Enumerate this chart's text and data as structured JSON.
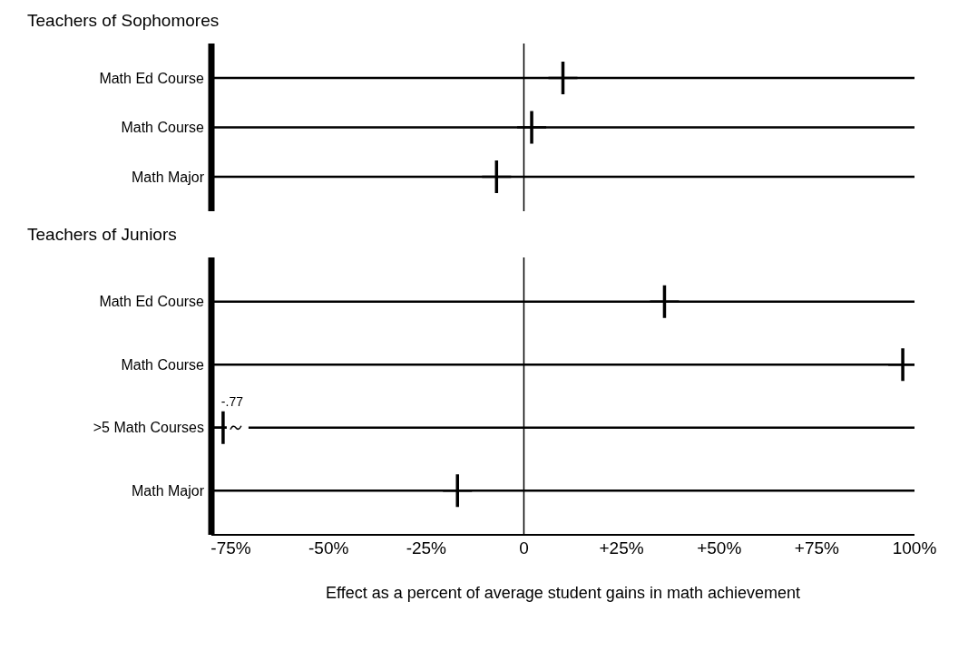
{
  "chart_data": [
    {
      "type": "scatter",
      "orientation": "horizontal",
      "title": "Teachers of Sophomores",
      "categories": [
        "Math Ed Course",
        "Math Course",
        "Math Major"
      ],
      "series": [
        {
          "color": "#000000",
          "values": [
            10,
            2,
            -7
          ]
        }
      ],
      "xlim": [
        -80,
        100
      ],
      "grid": "y",
      "marker": "cross",
      "tick_labels": "y",
      "ref_lines": [
        {
          "axis": "x",
          "value": 0
        }
      ]
    },
    {
      "type": "scatter",
      "orientation": "horizontal",
      "title": "Teachers of Juniors",
      "xlabel": "Effect as a percent of average student gains in math achievement",
      "categories": [
        "Math Ed Course",
        "Math Course",
        ">5 Math Courses",
        "Math Major"
      ],
      "series": [
        {
          "color": "#000000",
          "values": [
            36,
            97,
            -77,
            -17
          ]
        }
      ],
      "annotations": [
        {
          "text": "-.77",
          "x": -77,
          "y": ">5 Math Courses"
        }
      ],
      "xlim": [
        -80,
        100
      ],
      "xticks": [
        {
          "value": -75,
          "label": "-75%"
        },
        {
          "value": -50,
          "label": "-50%"
        },
        {
          "value": -25,
          "label": "-25%"
        },
        0,
        {
          "value": 25,
          "label": "+25%"
        },
        {
          "value": 50,
          "label": "+50%"
        },
        {
          "value": 75,
          "label": "+75%"
        },
        {
          "value": 100,
          "label": "100%"
        }
      ],
      "grid": "y",
      "marker": "cross",
      "ref_lines": [
        {
          "axis": "x",
          "value": 0
        }
      ]
    }
  ]
}
